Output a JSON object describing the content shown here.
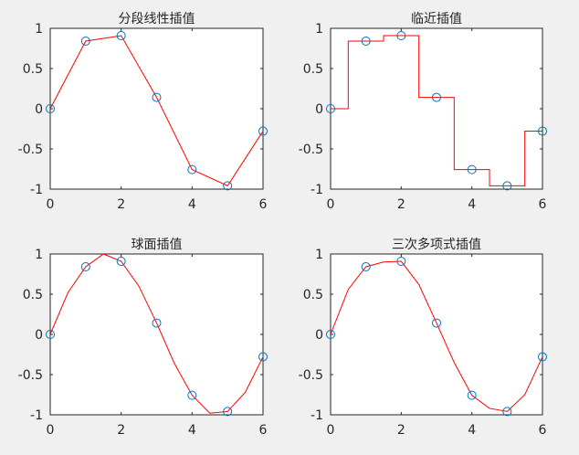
{
  "colors": {
    "figure_bg": "#f0f0f0",
    "axes_bg": "#ffffff",
    "axis": "#262626",
    "interp_line": "#ff0000",
    "sample_marker": "#0072bd"
  },
  "chart_data": [
    {
      "type": "line",
      "title": "分段线性插值",
      "xlim": [
        0,
        6
      ],
      "ylim": [
        -1,
        1
      ],
      "xticks": [
        0,
        2,
        4,
        6
      ],
      "yticks": [
        -1,
        -0.5,
        0,
        0.5,
        1
      ],
      "xtick_labels": [
        "0",
        "2",
        "4",
        "6"
      ],
      "ytick_labels": [
        "-1",
        "-0.5",
        "0",
        "0.5",
        "1"
      ],
      "grid": false,
      "legend": "none",
      "series": [
        {
          "style": "line",
          "color": "#ff0000",
          "x": [
            0,
            1,
            2,
            3,
            4,
            5,
            6
          ],
          "y": [
            0,
            0.841,
            0.909,
            0.141,
            -0.757,
            -0.959,
            -0.279
          ]
        },
        {
          "style": "markers",
          "marker": "o",
          "color": "#0072bd",
          "x": [
            0,
            1,
            2,
            3,
            4,
            5,
            6
          ],
          "y": [
            0,
            0.841,
            0.909,
            0.141,
            -0.757,
            -0.959,
            -0.279
          ]
        }
      ]
    },
    {
      "type": "line",
      "title": "临近插值",
      "xlim": [
        0,
        6
      ],
      "ylim": [
        -1,
        1
      ],
      "xticks": [
        0,
        2,
        4,
        6
      ],
      "yticks": [
        -1,
        -0.5,
        0,
        0.5,
        1
      ],
      "xtick_labels": [
        "0",
        "2",
        "4",
        "6"
      ],
      "ytick_labels": [
        "-1",
        "-0.5",
        "0",
        "0.5",
        "1"
      ],
      "grid": false,
      "legend": "none",
      "series": [
        {
          "style": "line",
          "color": "#ff0000",
          "x": [
            0,
            0.5,
            0.5,
            1.5,
            1.5,
            2.5,
            2.5,
            3.5,
            3.5,
            4.5,
            4.5,
            5.5,
            5.5,
            6
          ],
          "y": [
            0,
            0,
            0.841,
            0.841,
            0.909,
            0.909,
            0.141,
            0.141,
            -0.757,
            -0.757,
            -0.959,
            -0.959,
            -0.279,
            -0.279
          ]
        },
        {
          "style": "markers",
          "marker": "o",
          "color": "#0072bd",
          "x": [
            0,
            1,
            2,
            3,
            4,
            5,
            6
          ],
          "y": [
            0,
            0.841,
            0.909,
            0.141,
            -0.757,
            -0.959,
            -0.279
          ]
        }
      ]
    },
    {
      "type": "line",
      "title": "球面插值",
      "xlim": [
        0,
        6
      ],
      "ylim": [
        -1,
        1
      ],
      "xticks": [
        0,
        2,
        4,
        6
      ],
      "yticks": [
        -1,
        -0.5,
        0,
        0.5,
        1
      ],
      "xtick_labels": [
        "0",
        "2",
        "4",
        "6"
      ],
      "ytick_labels": [
        "-1",
        "-0.5",
        "0",
        "0.5",
        "1"
      ],
      "grid": false,
      "legend": "none",
      "series": [
        {
          "style": "line",
          "color": "#ff0000",
          "x": [
            0,
            0.5,
            1,
            1.5,
            2,
            2.5,
            3,
            3.5,
            4,
            4.5,
            5,
            5.5,
            6
          ],
          "y": [
            0,
            0.52,
            0.841,
            1.0,
            0.909,
            0.6,
            0.141,
            -0.36,
            -0.757,
            -0.98,
            -0.959,
            -0.72,
            -0.279
          ]
        },
        {
          "style": "markers",
          "marker": "o",
          "color": "#0072bd",
          "x": [
            0,
            1,
            2,
            3,
            4,
            5,
            6
          ],
          "y": [
            0,
            0.841,
            0.909,
            0.141,
            -0.757,
            -0.959,
            -0.279
          ]
        }
      ]
    },
    {
      "type": "line",
      "title": "三次多项式插值",
      "xlim": [
        0,
        6
      ],
      "ylim": [
        -1,
        1
      ],
      "xticks": [
        0,
        2,
        4,
        6
      ],
      "yticks": [
        -1,
        -0.5,
        0,
        0.5,
        1
      ],
      "xtick_labels": [
        "0",
        "2",
        "4",
        "6"
      ],
      "ytick_labels": [
        "-1",
        "-0.5",
        "0",
        "0.5",
        "1"
      ],
      "grid": false,
      "legend": "none",
      "series": [
        {
          "style": "line",
          "color": "#ff0000",
          "x": [
            0,
            0.5,
            1,
            1.5,
            2,
            2.5,
            3,
            3.5,
            4,
            4.5,
            5,
            5.5,
            6
          ],
          "y": [
            0,
            0.56,
            0.841,
            0.9,
            0.909,
            0.62,
            0.141,
            -0.35,
            -0.757,
            -0.92,
            -0.959,
            -0.75,
            -0.279
          ]
        },
        {
          "style": "markers",
          "marker": "o",
          "color": "#0072bd",
          "x": [
            0,
            1,
            2,
            3,
            4,
            5,
            6
          ],
          "y": [
            0,
            0.841,
            0.909,
            0.141,
            -0.757,
            -0.959,
            -0.279
          ]
        }
      ]
    }
  ]
}
